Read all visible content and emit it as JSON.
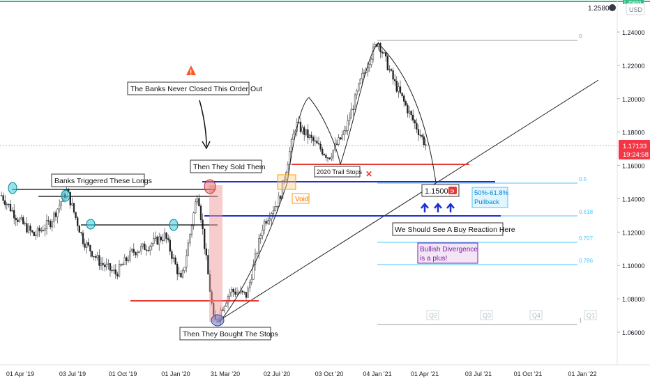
{
  "price_axis": {
    "currency": "USD",
    "last_price_top": "1.2580",
    "top_clipped_label": "1.25800",
    "current_price": "1.17133",
    "countdown": "19:24:58",
    "ticks": [
      1.06,
      1.08,
      1.1,
      1.12,
      1.14,
      1.16,
      1.18,
      1.2,
      1.22,
      1.24
    ],
    "tick_labels": [
      "1.06000",
      "1.08000",
      "1.10000",
      "1.12000",
      "1.14000",
      "1.16000",
      "1.18000",
      "1.20000",
      "1.22000",
      "1.24000"
    ]
  },
  "time_axis": {
    "labels": [
      "01 Apr '19",
      "03 Jul '19",
      "01 Oct '19",
      "01 Jan '20",
      "31 Mar '20",
      "02 Jul '20",
      "03 Oct '20",
      "04 Jan '21",
      "01 Apr '21",
      "03 Jul '21",
      "01 Oct '21",
      "01 Jan '22"
    ]
  },
  "chart_data": {
    "type": "line",
    "title": "",
    "xlabel": "",
    "ylabel": "",
    "ylim": [
      1.05,
      1.258
    ],
    "x": [
      "2019-03",
      "2019-04",
      "2019-05",
      "2019-06",
      "2019-07",
      "2019-08",
      "2019-09",
      "2019-10",
      "2019-11",
      "2019-12",
      "2020-01",
      "2020-02",
      "2020-03a",
      "2020-03b",
      "2020-04",
      "2020-05",
      "2020-06",
      "2020-07",
      "2020-08",
      "2020-09",
      "2020-10",
      "2020-11",
      "2020-12",
      "2021-01",
      "2021-02",
      "2021-03",
      "2021-04"
    ],
    "series": [
      {
        "values": [
          1.142,
          1.128,
          1.118,
          1.126,
          1.145,
          1.115,
          1.102,
          1.095,
          1.108,
          1.112,
          1.118,
          1.09,
          1.145,
          1.065,
          1.085,
          1.082,
          1.125,
          1.14,
          1.185,
          1.175,
          1.165,
          1.18,
          1.212,
          1.235,
          1.21,
          1.19,
          1.171
        ]
      }
    ],
    "fib_levels": [
      {
        "ratio": "0",
        "price": 1.2349
      },
      {
        "ratio": "0.5",
        "price": 1.15
      },
      {
        "ratio": "0.618",
        "price": 1.1298
      },
      {
        "ratio": "0.707",
        "price": 1.1147
      },
      {
        "ratio": "0.786",
        "price": 1.1012
      },
      {
        "ratio": "1",
        "price": 1.0636
      }
    ],
    "quarters": [
      "Q2",
      "Q3",
      "Q4",
      "Q1"
    ]
  },
  "annotations": {
    "banks_never_closed": "The Banks Never Closed This Order Out",
    "then_they_sold": "Then They Sold Them",
    "banks_triggered": "Banks Triggered These Longs",
    "then_they_bought": "Then They Bought The Stops",
    "trail_stops": "2020 Trail Stops",
    "void": "Void",
    "target_price": "1.1500",
    "pullback_line1": "50%-61.8%",
    "pullback_line2": "Pullback",
    "buy_reaction": "We Should See A Buy Reaction Here",
    "divergence_line1": "Bullish Divergence",
    "divergence_line2": "is a plus!",
    "warning_glyph": "!",
    "cross_glyph": "✕"
  },
  "colors": {
    "up_candle": "#26a69a",
    "down_candle": "#ef5350",
    "blue_level": "#1a2fd1",
    "red_level": "#e53935",
    "fib": "#4fc3f7",
    "current_price_badge": "#f23645",
    "void_box": "#ff9800",
    "divergence": "#7b1fa2"
  }
}
